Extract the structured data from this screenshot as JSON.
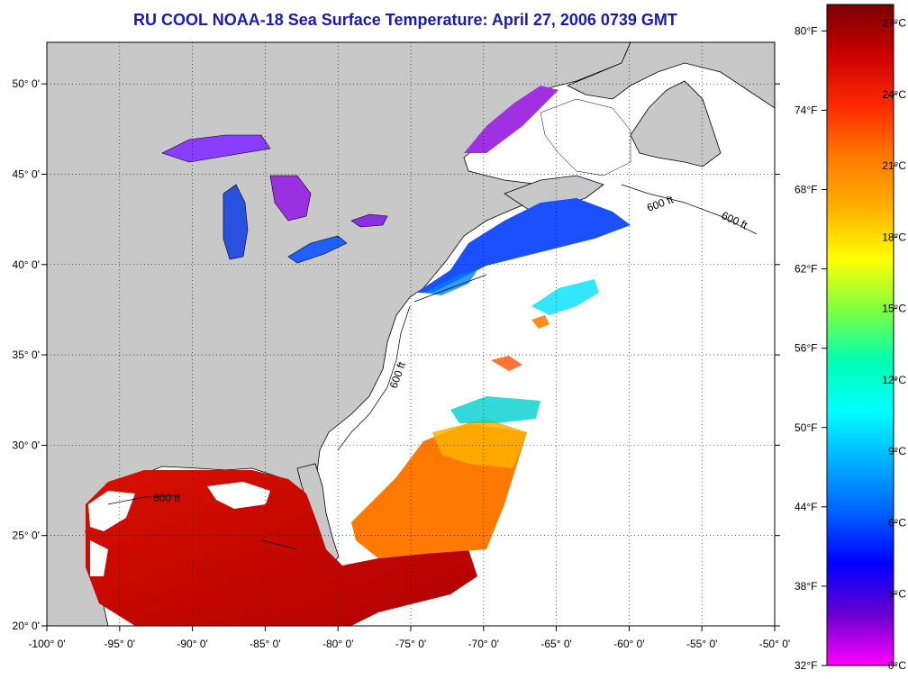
{
  "title": "RU COOL  NOAA-18  Sea Surface Temperature:  April 27, 2006 0739 GMT",
  "map": {
    "lon_range": [
      -100,
      -50
    ],
    "lat_range": [
      20,
      52.3
    ],
    "lon_ticks": [
      "-100° 0'",
      "-95° 0'",
      "-90° 0'",
      "-85° 0'",
      "-80° 0'",
      "-75° 0'",
      "-70° 0'",
      "-65° 0'",
      "-60° 0'",
      "-55° 0'",
      "-50° 0'"
    ],
    "lat_ticks": [
      "20° 0'",
      "25° 0'",
      "30° 0'",
      "35° 0'",
      "40° 0'",
      "45° 0'",
      "50° 0'"
    ],
    "land_color": "#c8c8c8",
    "no_data_color": "#ffffff",
    "isobath_label": "600 ft",
    "grid": "dotted"
  },
  "colorbar": {
    "fahrenheit_labels": [
      "80°F",
      "74°F",
      "68°F",
      "62°F",
      "56°F",
      "50°F",
      "44°F",
      "38°F",
      "32°F"
    ],
    "celsius_labels": [
      "27°C",
      "24°C",
      "21°C",
      "18°C",
      "15°C",
      "12°C",
      "9°C",
      "6°C",
      "3°C",
      "0°C"
    ],
    "colors_top_to_bottom": [
      "#7a0000",
      "#cc0000",
      "#ff2a00",
      "#ff7a00",
      "#ffb000",
      "#ffff00",
      "#80ff40",
      "#00ffb0",
      "#00ffff",
      "#00b0ff",
      "#0060ff",
      "#0000ff",
      "#6a00d0",
      "#ff00ff"
    ]
  }
}
